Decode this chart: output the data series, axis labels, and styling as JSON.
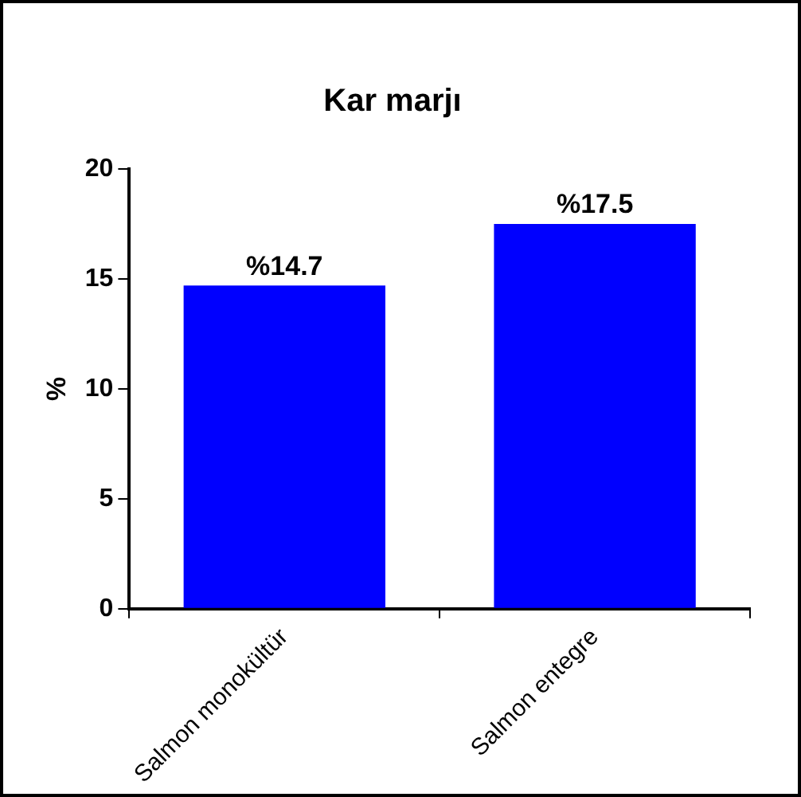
{
  "chart_data": {
    "type": "bar",
    "title": "Kar marjı",
    "ylabel": "%",
    "categories": [
      "Salmon monokültür",
      "Salmon entegre"
    ],
    "values": [
      14.7,
      17.5
    ],
    "color": "#0000ff",
    "value_labels": [
      "%14.7",
      "%17.5"
    ],
    "ylim": [
      0,
      20
    ],
    "yticks": [
      0,
      5,
      10,
      15,
      20
    ]
  }
}
